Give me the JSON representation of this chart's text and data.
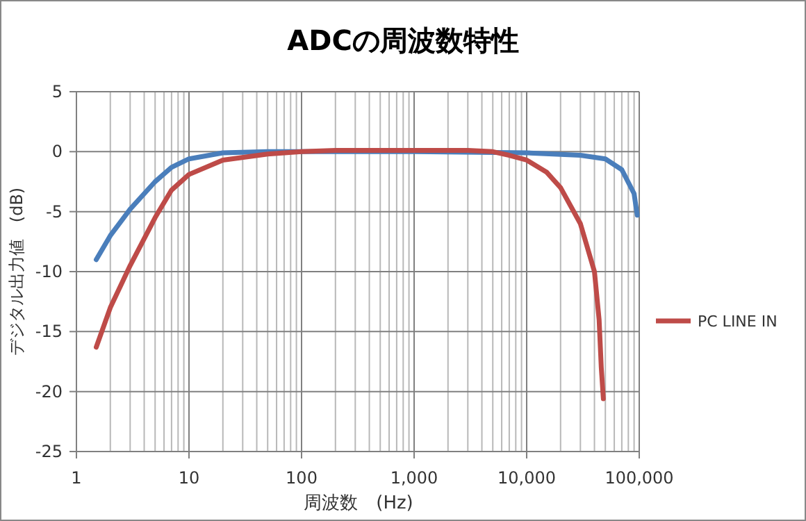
{
  "chart_data": {
    "type": "line",
    "title": "ADCの周波数特性",
    "xlabel": "周波数　(Hz)",
    "ylabel": "デジタル出力値　(dB)",
    "log": "x",
    "xlim": [
      1,
      100000
    ],
    "xticks": [
      1,
      10,
      100,
      {
        "value": 1000,
        "label": "1,000"
      },
      {
        "value": 10000,
        "label": "10,000"
      },
      {
        "value": 100000,
        "label": "100,000"
      }
    ],
    "ylim": [
      -25,
      5
    ],
    "yticks": [
      -25,
      -20,
      -15,
      -10,
      -5,
      0,
      5
    ],
    "grid": true,
    "legend": "right",
    "series": [
      {
        "color": "#4a7ebb",
        "x": [
          1.5,
          2,
          3,
          5,
          7,
          10,
          20,
          50,
          100,
          1000,
          10000,
          30000,
          50000,
          70000,
          90000,
          96000
        ],
        "values": [
          -9,
          -7,
          -4.8,
          -2.5,
          -1.3,
          -0.6,
          -0.1,
          0,
          0,
          0,
          -0.1,
          -0.3,
          -0.6,
          -1.5,
          -3.5,
          -5.3
        ]
      },
      {
        "name": "PC LINE IN",
        "color": "#be4b48",
        "x": [
          1.5,
          2,
          3,
          5,
          7,
          10,
          20,
          50,
          100,
          200,
          1000,
          3000,
          5000,
          7000,
          10000,
          15000,
          20000,
          30000,
          40000,
          44000,
          46000,
          48000
        ],
        "values": [
          -16.3,
          -13,
          -9.5,
          -5.5,
          -3.2,
          -1.9,
          -0.7,
          -0.2,
          0,
          0.1,
          0.1,
          0.1,
          0,
          -0.3,
          -0.7,
          -1.7,
          -3,
          -6,
          -10,
          -14,
          -18,
          -20.6
        ]
      }
    ]
  }
}
